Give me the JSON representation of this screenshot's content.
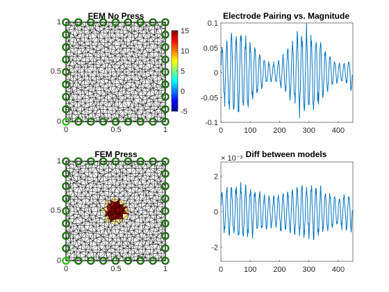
{
  "chart_data": [
    {
      "type": "mesh",
      "title": "FEM No Press",
      "xlim": [
        0,
        1
      ],
      "ylim": [
        0,
        1
      ],
      "xticks": [
        "0",
        "0.5",
        "1"
      ],
      "yticks": [
        "0",
        "0.5",
        "1"
      ],
      "electrodes_per_side": 9,
      "electrode_color": "#1f6f12",
      "highlight_electrode_color": "#2fc11a",
      "colorbar": {
        "min": -5,
        "max": 15,
        "ticks": [
          "15",
          "10",
          "5",
          "0",
          "-5"
        ],
        "colormap": "jet"
      }
    },
    {
      "type": "line",
      "title": "Electrode Pairing vs. Magnitude",
      "xlim": [
        0,
        450
      ],
      "ylim": [
        -0.1,
        0.1
      ],
      "xticks": [
        "0",
        "100",
        "200",
        "300",
        "400"
      ],
      "yticks": [
        "0.1",
        "0.05",
        "0",
        "-0.05",
        "-0.1"
      ],
      "line_color": "#0072bd",
      "series": [
        {
          "period": 16,
          "points": 448,
          "envelope": [
            0.02,
            0.09
          ]
        }
      ]
    },
    {
      "type": "mesh",
      "title": "FEM Press",
      "xlim": [
        0,
        1
      ],
      "ylim": [
        0,
        1
      ],
      "xticks": [
        "0",
        "0.5",
        "1"
      ],
      "yticks": [
        "0",
        "0.5",
        "1"
      ],
      "electrodes_per_side": 9,
      "electrode_color": "#1f6f12",
      "highlight_electrode_color": "#2fc11a",
      "press_region": {
        "center": [
          0.5,
          0.5
        ],
        "radius": 0.13
      }
    },
    {
      "type": "line",
      "title": "Diff between models",
      "exponent_label": "× 10⁻³",
      "xlim": [
        0,
        450
      ],
      "ylim": [
        -2.8,
        2.8
      ],
      "xticks": [
        "0",
        "100",
        "200",
        "300",
        "400"
      ],
      "yticks": [
        "2",
        "0",
        "-2"
      ],
      "line_color": "#0072bd",
      "series": [
        {
          "period": 16,
          "points": 448,
          "envelope": [
            1.0,
            1.6
          ]
        }
      ]
    }
  ]
}
